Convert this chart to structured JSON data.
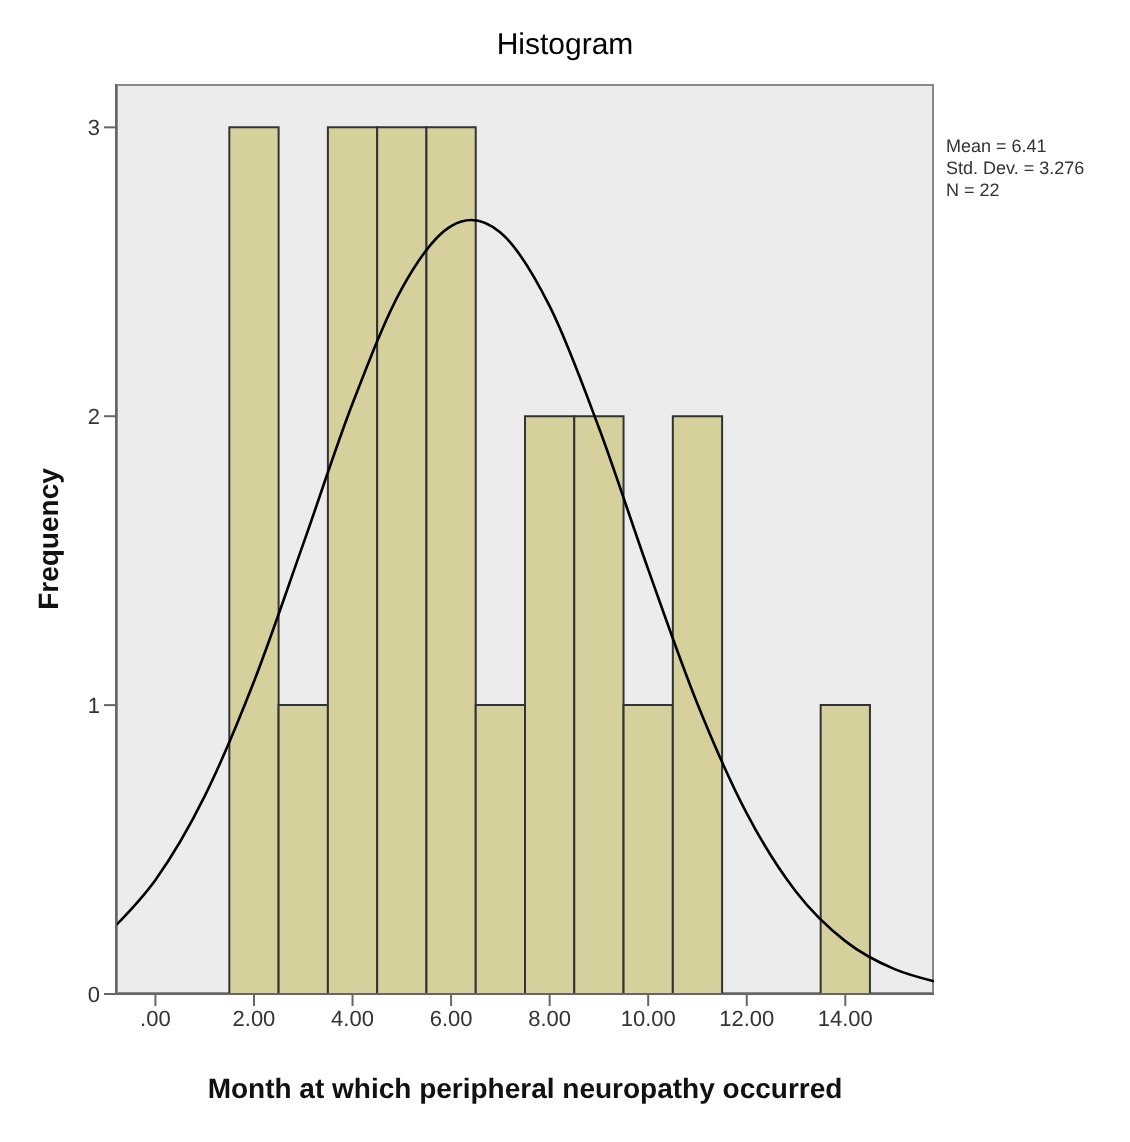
{
  "chart_data": {
    "type": "histogram",
    "title": "Histogram",
    "xlabel": "Month at which peripheral neuropathy occurred",
    "ylabel": "Frequency",
    "bins": [
      1.5,
      2.5,
      3.5,
      4.5,
      5.5,
      6.5,
      7.5,
      8.5,
      9.5,
      10.5,
      11.5,
      12.5,
      13.5,
      14.5
    ],
    "values": [
      3,
      1,
      3,
      3,
      3,
      1,
      2,
      2,
      1,
      2,
      0,
      0,
      1
    ],
    "color": "#d6d09c",
    "series": [
      {
        "type": "line",
        "color": "#000000",
        "x": [
          -0.8,
          0,
          1,
          2,
          3,
          4,
          5,
          6,
          6.41,
          7,
          8,
          9,
          10,
          11,
          12,
          13,
          14,
          15,
          15.8
        ],
        "values": [
          0.238,
          0.395,
          0.685,
          1.082,
          1.558,
          2.044,
          2.442,
          2.658,
          2.679,
          2.636,
          2.381,
          1.96,
          1.47,
          1.004,
          0.625,
          0.354,
          0.183,
          0.086,
          0.044
        ]
      }
    ],
    "xlim": [
      -0.8,
      15.8
    ],
    "xticks": [
      {
        "value": 0,
        "label": ".00"
      },
      {
        "value": 2,
        "label": "2.00"
      },
      {
        "value": 4,
        "label": "4.00"
      },
      {
        "value": 6,
        "label": "6.00"
      },
      {
        "value": 8,
        "label": "8.00"
      },
      {
        "value": 10,
        "label": "10.00"
      },
      {
        "value": 12,
        "label": "12.00"
      },
      {
        "value": 14,
        "label": "14.00"
      }
    ],
    "ylim": [
      0,
      3.15
    ],
    "yticks": [
      0,
      1,
      2,
      3
    ],
    "annotations": [
      "Mean = 6.41",
      "Std. Dev. = 3.276",
      "N = 22"
    ]
  }
}
